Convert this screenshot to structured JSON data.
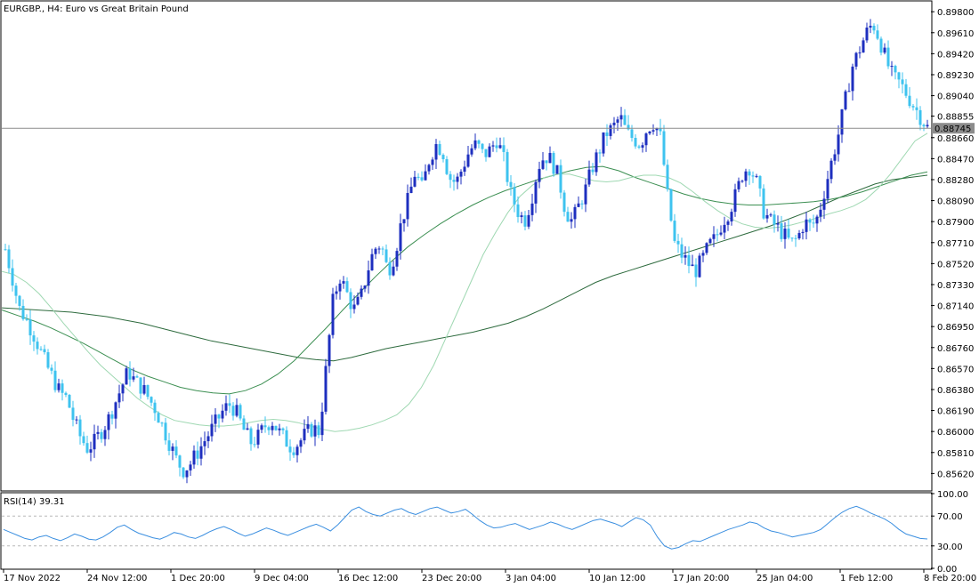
{
  "chart_data": {
    "type": "candlestick",
    "title": "EURGBP., H4:  Euro vs Great Britain Pound",
    "current_price": "0.88745",
    "price_axis": {
      "ylim": [
        0.8547,
        0.8989
      ],
      "ticks": [
        "0.89800",
        "0.89610",
        "0.89420",
        "0.89230",
        "0.89040",
        "0.88855",
        "0.88660",
        "0.88470",
        "0.88280",
        "0.88090",
        "0.87900",
        "0.87710",
        "0.87520",
        "0.87330",
        "0.87140",
        "0.86950",
        "0.86760",
        "0.86570",
        "0.86380",
        "0.86190",
        "0.86000",
        "0.85810",
        "0.85620"
      ]
    },
    "x_axis": {
      "labels": [
        "17 Nov 2022",
        "24 Nov 12:00",
        "1 Dec 20:00",
        "9 Dec 04:00",
        "16 Dec 12:00",
        "23 Dec 20:00",
        "3 Jan 04:00",
        "10 Jan 12:00",
        "17 Jan 20:00",
        "25 Jan 04:00",
        "1 Feb 12:00",
        "8 Feb 20:00"
      ]
    },
    "price_path": [
      0.8765,
      0.874,
      0.8712,
      0.8702,
      0.869,
      0.8675,
      0.866,
      0.8648,
      0.8635,
      0.863,
      0.861,
      0.8595,
      0.8585,
      0.859,
      0.86,
      0.861,
      0.8625,
      0.864,
      0.8655,
      0.8645,
      0.864,
      0.863,
      0.862,
      0.8605,
      0.859,
      0.8575,
      0.8565,
      0.857,
      0.858,
      0.859,
      0.86,
      0.861,
      0.862,
      0.8625,
      0.8615,
      0.86,
      0.859,
      0.8595,
      0.8605,
      0.861,
      0.86,
      0.8592,
      0.8585,
      0.859,
      0.8598,
      0.8603,
      0.86,
      0.866,
      0.872,
      0.874,
      0.8725,
      0.871,
      0.872,
      0.8745,
      0.8765,
      0.877,
      0.8745,
      0.876,
      0.879,
      0.881,
      0.8835,
      0.882,
      0.8845,
      0.886,
      0.8855,
      0.883,
      0.8825,
      0.884,
      0.8855,
      0.886,
      0.885,
      0.8855,
      0.8865,
      0.8845,
      0.8815,
      0.88,
      0.879,
      0.881,
      0.884,
      0.885,
      0.8845,
      0.883,
      0.88,
      0.879,
      0.8805,
      0.882,
      0.884,
      0.8855,
      0.887,
      0.8875,
      0.8885,
      0.887,
      0.8865,
      0.886,
      0.8875,
      0.888,
      0.8865,
      0.881,
      0.877,
      0.876,
      0.8752,
      0.8745,
      0.8755,
      0.8768,
      0.8775,
      0.879,
      0.88,
      0.8815,
      0.8835,
      0.884,
      0.8825,
      0.88,
      0.879,
      0.8785,
      0.8778,
      0.877,
      0.8775,
      0.879,
      0.8785,
      0.8795,
      0.882,
      0.8845,
      0.887,
      0.89,
      0.893,
      0.8945,
      0.896,
      0.897,
      0.8955,
      0.8935,
      0.892,
      0.8915,
      0.8905,
      0.8895,
      0.8885,
      0.8875
    ],
    "ma_fast": [
      0.8745,
      0.8742,
      0.8735,
      0.8725,
      0.8712,
      0.8698,
      0.8685,
      0.8672,
      0.866,
      0.865,
      0.864,
      0.863,
      0.8622,
      0.8615,
      0.861,
      0.8608,
      0.8606,
      0.8605,
      0.8605,
      0.8606,
      0.8608,
      0.861,
      0.8611,
      0.861,
      0.8608,
      0.8605,
      0.8602,
      0.86,
      0.8601,
      0.8603,
      0.8606,
      0.861,
      0.8615,
      0.8625,
      0.864,
      0.866,
      0.8685,
      0.871,
      0.8735,
      0.876,
      0.878,
      0.8798,
      0.8813,
      0.8823,
      0.883,
      0.8833,
      0.8833,
      0.883,
      0.8827,
      0.8826,
      0.8827,
      0.883,
      0.8832,
      0.8832,
      0.883,
      0.8825,
      0.8817,
      0.8808,
      0.88,
      0.8793,
      0.8788,
      0.8785,
      0.8784,
      0.8785,
      0.8787,
      0.879,
      0.8793,
      0.8797,
      0.88,
      0.8804,
      0.881,
      0.882,
      0.8833,
      0.8848,
      0.8863,
      0.887
    ],
    "ma_mid": [
      0.871,
      0.8705,
      0.87,
      0.8694,
      0.8687,
      0.868,
      0.8672,
      0.8664,
      0.8656,
      0.865,
      0.8645,
      0.864,
      0.8637,
      0.8635,
      0.8634,
      0.8637,
      0.8643,
      0.8652,
      0.8664,
      0.8679,
      0.8694,
      0.871,
      0.8725,
      0.874,
      0.8754,
      0.8767,
      0.8778,
      0.8788,
      0.8797,
      0.8805,
      0.8812,
      0.8818,
      0.8823,
      0.8828,
      0.8832,
      0.8836,
      0.8839,
      0.884,
      0.8836,
      0.883,
      0.8825,
      0.882,
      0.8815,
      0.8811,
      0.8808,
      0.8806,
      0.8805,
      0.8805,
      0.8806,
      0.8807,
      0.8808,
      0.881,
      0.8813,
      0.8817,
      0.8822,
      0.8827,
      0.8832,
      0.8835
    ],
    "ma_slow": [
      0.8712,
      0.8711,
      0.871,
      0.8709,
      0.8708,
      0.8706,
      0.8704,
      0.8701,
      0.8698,
      0.8694,
      0.869,
      0.8686,
      0.8682,
      0.8679,
      0.8676,
      0.8673,
      0.867,
      0.8667,
      0.8665,
      0.8664,
      0.8667,
      0.8671,
      0.8675,
      0.8678,
      0.8681,
      0.8684,
      0.8687,
      0.869,
      0.8694,
      0.8698,
      0.8704,
      0.8711,
      0.8719,
      0.8727,
      0.8735,
      0.8741,
      0.8746,
      0.8751,
      0.8756,
      0.8761,
      0.8766,
      0.8771,
      0.8776,
      0.8781,
      0.8786,
      0.8792,
      0.8798,
      0.8805,
      0.8812,
      0.8818,
      0.8824,
      0.8828,
      0.883,
      0.8832
    ],
    "rsi": {
      "label": "RSI(14) 39.31",
      "ylim": [
        0,
        100
      ],
      "ticks": [
        "100.00",
        "70.00",
        "30.00",
        "0.00"
      ],
      "levels": [
        70,
        30
      ],
      "values": [
        52,
        48,
        44,
        40,
        38,
        42,
        44,
        40,
        37,
        41,
        46,
        43,
        39,
        38,
        42,
        48,
        55,
        58,
        52,
        47,
        44,
        41,
        39,
        43,
        48,
        46,
        42,
        40,
        44,
        49,
        53,
        56,
        52,
        47,
        43,
        46,
        50,
        54,
        51,
        47,
        44,
        48,
        52,
        56,
        59,
        55,
        50,
        58,
        68,
        78,
        82,
        76,
        72,
        70,
        74,
        78,
        80,
        75,
        72,
        76,
        80,
        82,
        78,
        74,
        76,
        79,
        72,
        64,
        58,
        54,
        55,
        58,
        60,
        56,
        52,
        55,
        58,
        62,
        59,
        55,
        52,
        56,
        60,
        64,
        66,
        63,
        60,
        56,
        62,
        68,
        65,
        58,
        42,
        30,
        26,
        28,
        33,
        37,
        36,
        40,
        44,
        48,
        52,
        55,
        58,
        62,
        60,
        54,
        50,
        48,
        45,
        42,
        44,
        46,
        48,
        52,
        60,
        68,
        75,
        80,
        83,
        79,
        74,
        70,
        66,
        60,
        52,
        46,
        43,
        40,
        39.31
      ]
    }
  }
}
